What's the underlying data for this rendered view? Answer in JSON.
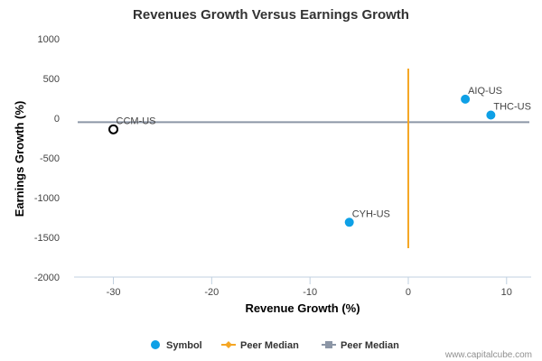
{
  "chart_data": {
    "type": "scatter",
    "title": "Revenues Growth Versus Earnings Growth",
    "xlabel": "Revenue Growth (%)",
    "ylabel": "Earnings Growth (%)",
    "xlim": [
      -34,
      12.5
    ],
    "ylim": [
      -2000,
      1000
    ],
    "xticks": [
      -30,
      -20,
      -10,
      0,
      10
    ],
    "yticks": [
      1000,
      500,
      0,
      -500,
      -1000,
      -1500,
      -2000
    ],
    "grid": false,
    "legend_position": "bottom",
    "points": [
      {
        "label": "AIQ-US",
        "x": 5.8,
        "y": 240,
        "style": "filled"
      },
      {
        "label": "THC-US",
        "x": 8.4,
        "y": 40,
        "style": "filled"
      },
      {
        "label": "CCM-US",
        "x": -30,
        "y": -140,
        "style": "hollow"
      },
      {
        "label": "CYH-US",
        "x": -6,
        "y": -1310,
        "style": "filled"
      }
    ],
    "peer_median_x": 0,
    "peer_median_y": -50,
    "legend": [
      "Symbol",
      "Peer Median",
      "Peer Median"
    ],
    "colors": {
      "symbol": "#0ea0e6",
      "peer_median_x": "#f5a623",
      "peer_median_y": "#8c96a6",
      "hollow_stroke": "#000000"
    }
  },
  "credit": "www.capitalcube.com"
}
